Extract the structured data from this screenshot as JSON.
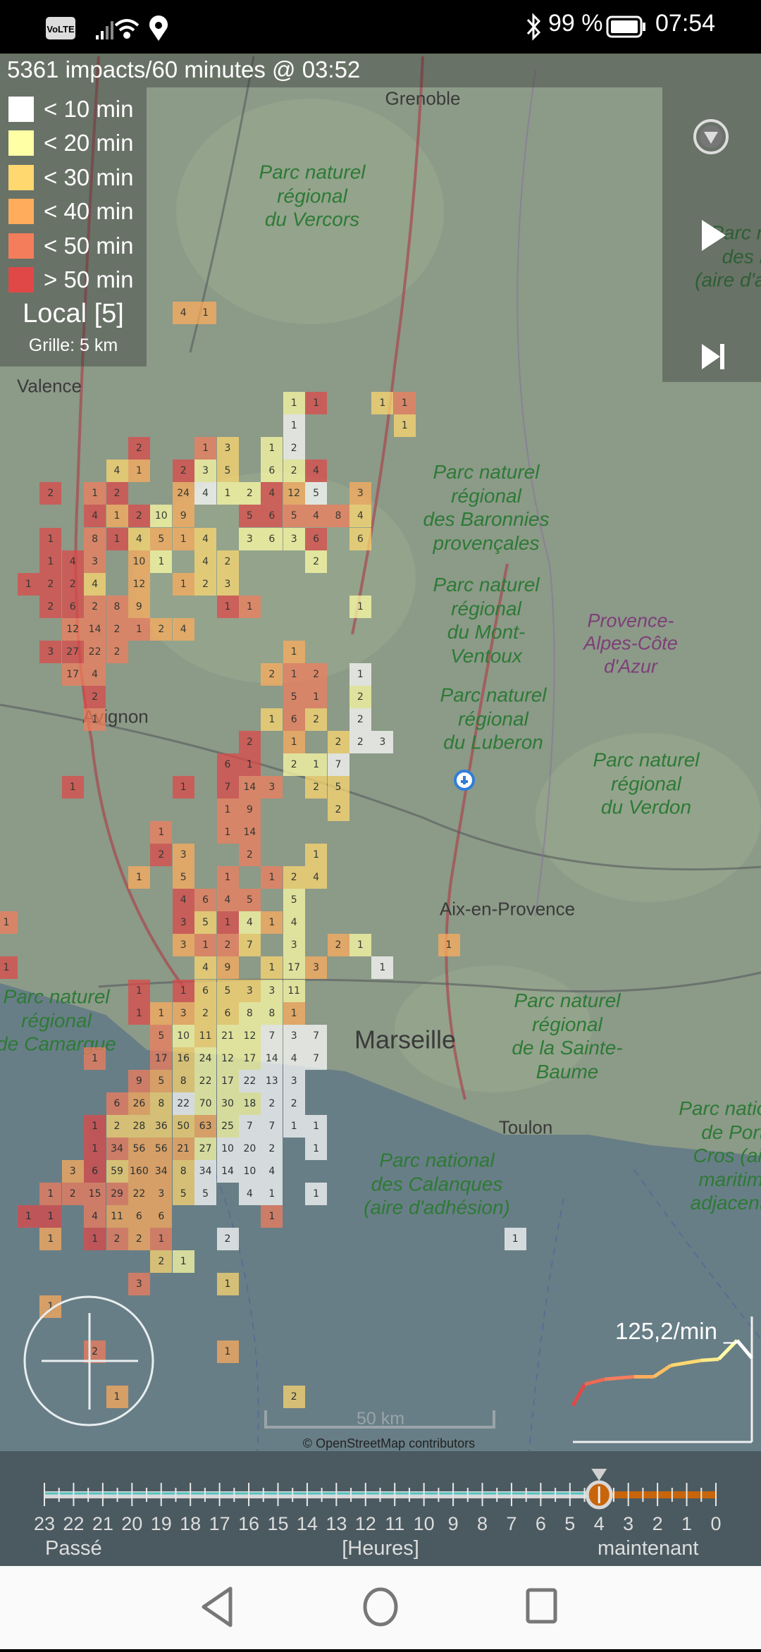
{
  "status_bar": {
    "network_badge": "VoLTE",
    "battery": "99 %",
    "time": "07:54",
    "icons": [
      "volte-icon",
      "signal-icon",
      "wifi-icon",
      "location-icon",
      "bluetooth-icon",
      "battery-icon"
    ]
  },
  "header": {
    "summary": "5361 impacts/60 minutes @ 03:52"
  },
  "legend": {
    "items": [
      {
        "key": "a0",
        "label": "< 10 min",
        "color": "#ffffff"
      },
      {
        "key": "a1",
        "label": "< 20 min",
        "color": "#ffffa6"
      },
      {
        "key": "a2",
        "label": "< 30 min",
        "color": "#ffd970"
      },
      {
        "key": "a3",
        "label": "< 40 min",
        "color": "#ffad5c"
      },
      {
        "key": "a4",
        "label": "< 50 min",
        "color": "#f47d5c"
      },
      {
        "key": "a5",
        "label": "> 50 min",
        "color": "#e04848"
      }
    ],
    "mode": "Local [5]",
    "grid": "Grille: 5 km"
  },
  "controls": {
    "menu_icon": "dropdown-circle-icon",
    "play_icon": "play-icon",
    "skip_icon": "skip-to-end-icon"
  },
  "map": {
    "labels": [
      {
        "text": "Grenoble",
        "kind": "city"
      },
      {
        "text": "Valence",
        "kind": "city"
      },
      {
        "text": "Parc naturel\nrégional\ndu Vercors",
        "kind": "park"
      },
      {
        "text": "Parc national\ndes Écrins\n(aire d'adhésion)",
        "kind": "park"
      },
      {
        "text": "Parc naturel\nrégional\ndes Baronnies\nprovençales",
        "kind": "park"
      },
      {
        "text": "Parc naturel\nrégional\ndu Mont-\nVentoux",
        "kind": "park"
      },
      {
        "text": "Provence-\nAlpes-Côte\nd'Azur",
        "kind": "region"
      },
      {
        "text": "Avignon",
        "kind": "city"
      },
      {
        "text": "Parc naturel\nrégional\ndu Luberon",
        "kind": "park"
      },
      {
        "text": "Parc naturel\nrégional\ndu Verdon",
        "kind": "park"
      },
      {
        "text": "Parc naturel\nrégional\nde Camargue",
        "kind": "park"
      },
      {
        "text": "Aix-en-Provence",
        "kind": "city"
      },
      {
        "text": "Marseille",
        "kind": "city"
      },
      {
        "text": "Parc naturel\nrégional\nde la Sainte-\nBaume",
        "kind": "park"
      },
      {
        "text": "Toulon",
        "kind": "city"
      },
      {
        "text": "Parc national\ndes Calanques\n(aire d'adhésion)",
        "kind": "park"
      },
      {
        "text": "Parc national\nde Port-\nCros (aire\nmaritime\nadjacente)",
        "kind": "park"
      }
    ],
    "cells": [
      [
        "4",
        "a3"
      ],
      [
        "1",
        "a3"
      ],
      [
        "1",
        "a1"
      ],
      [
        "1",
        "a5"
      ],
      [
        "1",
        "a2"
      ],
      [
        "1",
        "a4"
      ],
      [
        "1",
        "a0"
      ],
      [
        "1",
        "a2"
      ],
      [
        "2",
        "a5"
      ],
      [
        "1",
        "a4"
      ],
      [
        "3",
        "a2"
      ],
      [
        "1",
        "a1"
      ],
      [
        "2",
        "a0"
      ],
      [
        "4",
        "a2"
      ],
      [
        "1",
        "a3"
      ],
      [
        "2",
        "a5"
      ],
      [
        "3",
        "a1"
      ],
      [
        "5",
        "a2"
      ],
      [
        "6",
        "a1"
      ],
      [
        "2",
        "a1"
      ],
      [
        "4",
        "a5"
      ],
      [
        "2",
        "a5"
      ],
      [
        "1",
        "a4"
      ],
      [
        "2",
        "a5"
      ],
      [
        "24",
        "a3"
      ],
      [
        "4",
        "a0"
      ],
      [
        "1",
        "a1"
      ],
      [
        "2",
        "a1"
      ],
      [
        "4",
        "a5"
      ],
      [
        "12",
        "a3"
      ],
      [
        "5",
        "a0"
      ],
      [
        "3",
        "a3"
      ],
      [
        "4",
        "a5"
      ],
      [
        "1",
        "a3"
      ],
      [
        "2",
        "a5"
      ],
      [
        "10",
        "a1"
      ],
      [
        "9",
        "a3"
      ],
      [
        "5",
        "a5"
      ],
      [
        "6",
        "a5"
      ],
      [
        "5",
        "a4"
      ],
      [
        "4",
        "a4"
      ],
      [
        "8",
        "a4"
      ],
      [
        "4",
        "a2"
      ],
      [
        "1",
        "a5"
      ],
      [
        "8",
        "a4"
      ],
      [
        "1",
        "a5"
      ],
      [
        "4",
        "a2"
      ],
      [
        "5",
        "a3"
      ],
      [
        "1",
        "a3"
      ],
      [
        "4",
        "a2"
      ],
      [
        "3",
        "a1"
      ],
      [
        "6",
        "a1"
      ],
      [
        "3",
        "a1"
      ],
      [
        "6",
        "a5"
      ],
      [
        "6",
        "a2"
      ],
      [
        "1",
        "a5"
      ],
      [
        "4",
        "a5"
      ],
      [
        "3",
        "a4"
      ],
      [
        "10",
        "a3"
      ],
      [
        "1",
        "a1"
      ],
      [
        "4",
        "a2"
      ],
      [
        "2",
        "a2"
      ],
      [
        "2",
        "a1"
      ],
      [
        "1",
        "a5"
      ],
      [
        "2",
        "a5"
      ],
      [
        "2",
        "a5"
      ],
      [
        "4",
        "a2"
      ],
      [
        "12",
        "a3"
      ],
      [
        "1",
        "a3"
      ],
      [
        "2",
        "a2"
      ],
      [
        "3",
        "a2"
      ],
      [
        "2",
        "a5"
      ],
      [
        "6",
        "a5"
      ],
      [
        "2",
        "a4"
      ],
      [
        "8",
        "a4"
      ],
      [
        "9",
        "a3"
      ],
      [
        "1",
        "a5"
      ],
      [
        "1",
        "a4"
      ],
      [
        "1",
        "a1"
      ],
      [
        "12",
        "a4"
      ],
      [
        "14",
        "a4"
      ],
      [
        "2",
        "a4"
      ],
      [
        "1",
        "a4"
      ],
      [
        "2",
        "a3"
      ],
      [
        "4",
        "a3"
      ],
      [
        "3",
        "a5"
      ],
      [
        "27",
        "a5"
      ],
      [
        "22",
        "a4"
      ],
      [
        "2",
        "a4"
      ],
      [
        "1",
        "a3"
      ],
      [
        "17",
        "a4"
      ],
      [
        "4",
        "a4"
      ],
      [
        "2",
        "a3"
      ],
      [
        "1",
        "a4"
      ],
      [
        "2",
        "a4"
      ],
      [
        "1",
        "a0"
      ],
      [
        "2",
        "a5"
      ],
      [
        "5",
        "a4"
      ],
      [
        "1",
        "a4"
      ],
      [
        "2",
        "a1"
      ],
      [
        "1",
        "a4"
      ],
      [
        "1",
        "a2"
      ],
      [
        "6",
        "a4"
      ],
      [
        "2",
        "a2"
      ],
      [
        "2",
        "a0"
      ],
      [
        "2",
        "a5"
      ],
      [
        "1",
        "a3"
      ],
      [
        "2",
        "a2"
      ],
      [
        "2",
        "a0"
      ],
      [
        "3",
        "a0"
      ],
      [
        "6",
        "a5"
      ],
      [
        "1",
        "a5"
      ],
      [
        "2",
        "a1"
      ],
      [
        "1",
        "a1"
      ],
      [
        "7",
        "a0"
      ],
      [
        "1",
        "a5"
      ],
      [
        "1",
        "a5"
      ],
      [
        "7",
        "a5"
      ],
      [
        "14",
        "a4"
      ],
      [
        "3",
        "a4"
      ],
      [
        "2",
        "a2"
      ],
      [
        "5",
        "a2"
      ],
      [
        "1",
        "a4"
      ],
      [
        "9",
        "a4"
      ],
      [
        "2",
        "a2"
      ],
      [
        "1",
        "a4"
      ],
      [
        "1",
        "a4"
      ],
      [
        "14",
        "a4"
      ],
      [
        "2",
        "a5"
      ],
      [
        "3",
        "a3"
      ],
      [
        "2",
        "a4"
      ],
      [
        "1",
        "a2"
      ],
      [
        "1",
        "a3"
      ],
      [
        "5",
        "a3"
      ],
      [
        "1",
        "a4"
      ],
      [
        "1",
        "a4"
      ],
      [
        "2",
        "a2"
      ],
      [
        "4",
        "a2"
      ],
      [
        "4",
        "a5"
      ],
      [
        "6",
        "a4"
      ],
      [
        "4",
        "a4"
      ],
      [
        "5",
        "a4"
      ],
      [
        "5",
        "a1"
      ],
      [
        "1",
        "a4"
      ],
      [
        "3",
        "a5"
      ],
      [
        "5",
        "a2"
      ],
      [
        "1",
        "a5"
      ],
      [
        "4",
        "a1"
      ],
      [
        "1",
        "a3"
      ],
      [
        "4",
        "a1"
      ],
      [
        "3",
        "a3"
      ],
      [
        "1",
        "a4"
      ],
      [
        "2",
        "a4"
      ],
      [
        "7",
        "a2"
      ],
      [
        "3",
        "a1"
      ],
      [
        "2",
        "a3"
      ],
      [
        "1",
        "a1"
      ],
      [
        "1",
        "a3"
      ],
      [
        "1",
        "a5"
      ],
      [
        "4",
        "a2"
      ],
      [
        "9",
        "a3"
      ],
      [
        "1",
        "a2"
      ],
      [
        "17",
        "a1"
      ],
      [
        "3",
        "a3"
      ],
      [
        "1",
        "a0"
      ],
      [
        "1",
        "a5"
      ],
      [
        "1",
        "a5"
      ],
      [
        "6",
        "a2"
      ],
      [
        "5",
        "a2"
      ],
      [
        "3",
        "a2"
      ],
      [
        "3",
        "a1"
      ],
      [
        "11",
        "a1"
      ],
      [
        "1",
        "a5"
      ],
      [
        "1",
        "a3"
      ],
      [
        "3",
        "a3"
      ],
      [
        "2",
        "a2"
      ],
      [
        "6",
        "a2"
      ],
      [
        "8",
        "a1"
      ],
      [
        "8",
        "a1"
      ],
      [
        "1",
        "a3"
      ],
      [
        "5",
        "a4"
      ],
      [
        "10",
        "a1"
      ],
      [
        "11",
        "a2"
      ],
      [
        "21",
        "a1"
      ],
      [
        "12",
        "a1"
      ],
      [
        "7",
        "a0"
      ],
      [
        "3",
        "a0"
      ],
      [
        "7",
        "a0"
      ],
      [
        "1",
        "a4"
      ],
      [
        "17",
        "a4"
      ],
      [
        "16",
        "a2"
      ],
      [
        "24",
        "a1"
      ],
      [
        "12",
        "a1"
      ],
      [
        "17",
        "a1"
      ],
      [
        "14",
        "a0"
      ],
      [
        "4",
        "a0"
      ],
      [
        "7",
        "a0"
      ],
      [
        "9",
        "a4"
      ],
      [
        "5",
        "a3"
      ],
      [
        "8",
        "a2"
      ],
      [
        "22",
        "a1"
      ],
      [
        "17",
        "a1"
      ],
      [
        "22",
        "a0"
      ],
      [
        "13",
        "a0"
      ],
      [
        "3",
        "a0"
      ],
      [
        "6",
        "a4"
      ],
      [
        "26",
        "a3"
      ],
      [
        "8",
        "a2"
      ],
      [
        "22",
        "a0"
      ],
      [
        "70",
        "a1"
      ],
      [
        "30",
        "a1"
      ],
      [
        "18",
        "a1"
      ],
      [
        "2",
        "a0"
      ],
      [
        "2",
        "a0"
      ],
      [
        "1",
        "a5"
      ],
      [
        "2",
        "a2"
      ],
      [
        "28",
        "a2"
      ],
      [
        "36",
        "a2"
      ],
      [
        "50",
        "a2"
      ],
      [
        "63",
        "a3"
      ],
      [
        "25",
        "a1"
      ],
      [
        "7",
        "a0"
      ],
      [
        "7",
        "a0"
      ],
      [
        "1",
        "a0"
      ],
      [
        "1",
        "a0"
      ],
      [
        "1",
        "a5"
      ],
      [
        "34",
        "a4"
      ],
      [
        "56",
        "a3"
      ],
      [
        "56",
        "a3"
      ],
      [
        "21",
        "a3"
      ],
      [
        "27",
        "a1"
      ],
      [
        "10",
        "a0"
      ],
      [
        "20",
        "a0"
      ],
      [
        "2",
        "a0"
      ],
      [
        "1",
        "a0"
      ],
      [
        "3",
        "a3"
      ],
      [
        "6",
        "a5"
      ],
      [
        "59",
        "a2"
      ],
      [
        "160",
        "a3"
      ],
      [
        "34",
        "a3"
      ],
      [
        "8",
        "a2"
      ],
      [
        "34",
        "a0"
      ],
      [
        "14",
        "a0"
      ],
      [
        "10",
        "a0"
      ],
      [
        "4",
        "a0"
      ],
      [
        "1",
        "a4"
      ],
      [
        "2",
        "a4"
      ],
      [
        "15",
        "a4"
      ],
      [
        "29",
        "a4"
      ],
      [
        "22",
        "a3"
      ],
      [
        "3",
        "a3"
      ],
      [
        "5",
        "a2"
      ],
      [
        "5",
        "a0"
      ],
      [
        "4",
        "a0"
      ],
      [
        "1",
        "a0"
      ],
      [
        "1",
        "a0"
      ],
      [
        "1",
        "a5"
      ],
      [
        "1",
        "a5"
      ],
      [
        "4",
        "a4"
      ],
      [
        "11",
        "a3"
      ],
      [
        "6",
        "a3"
      ],
      [
        "6",
        "a3"
      ],
      [
        "1",
        "a4"
      ],
      [
        "1",
        "a3"
      ],
      [
        "1",
        "a5"
      ],
      [
        "2",
        "a4"
      ],
      [
        "2",
        "a3"
      ],
      [
        "1",
        "a4"
      ],
      [
        "2",
        "a0"
      ],
      [
        "1",
        "a0"
      ],
      [
        "2",
        "a2"
      ],
      [
        "1",
        "a1"
      ],
      [
        "3",
        "a4"
      ],
      [
        "1",
        "a2"
      ],
      [
        "1",
        "a3"
      ],
      [
        "2",
        "a4"
      ],
      [
        "1",
        "a3"
      ],
      [
        "1",
        "a3"
      ],
      [
        "2",
        "a2"
      ]
    ],
    "scale": "50 km",
    "attribution": "© OpenStreetMap contributors",
    "position_marker_icon": "location-plus-icon",
    "crosshair_icon": "crosshair-icon"
  },
  "rate": {
    "label": "125,2/min _",
    "trend_levels": [
      0.29,
      0.46,
      0.5,
      0.52,
      0.52,
      0.61,
      0.65,
      0.66,
      0.81,
      0.67
    ]
  },
  "timeline": {
    "hours": [
      "23",
      "22",
      "21",
      "20",
      "19",
      "18",
      "17",
      "16",
      "15",
      "14",
      "13",
      "12",
      "11",
      "10",
      "9",
      "8",
      "7",
      "6",
      "5",
      "4",
      "3",
      "2",
      "1",
      "0"
    ],
    "selected_hour": 4,
    "past_label": "Passé",
    "unit_label": "[Heures]",
    "now_label": "maintenant",
    "colors": {
      "past": "#d9d9d9",
      "past_line": "#4fc3c0",
      "future": "#c8650a"
    }
  },
  "nav": {
    "back_icon": "back-icon",
    "home_icon": "home-icon",
    "recents_icon": "recents-icon"
  }
}
